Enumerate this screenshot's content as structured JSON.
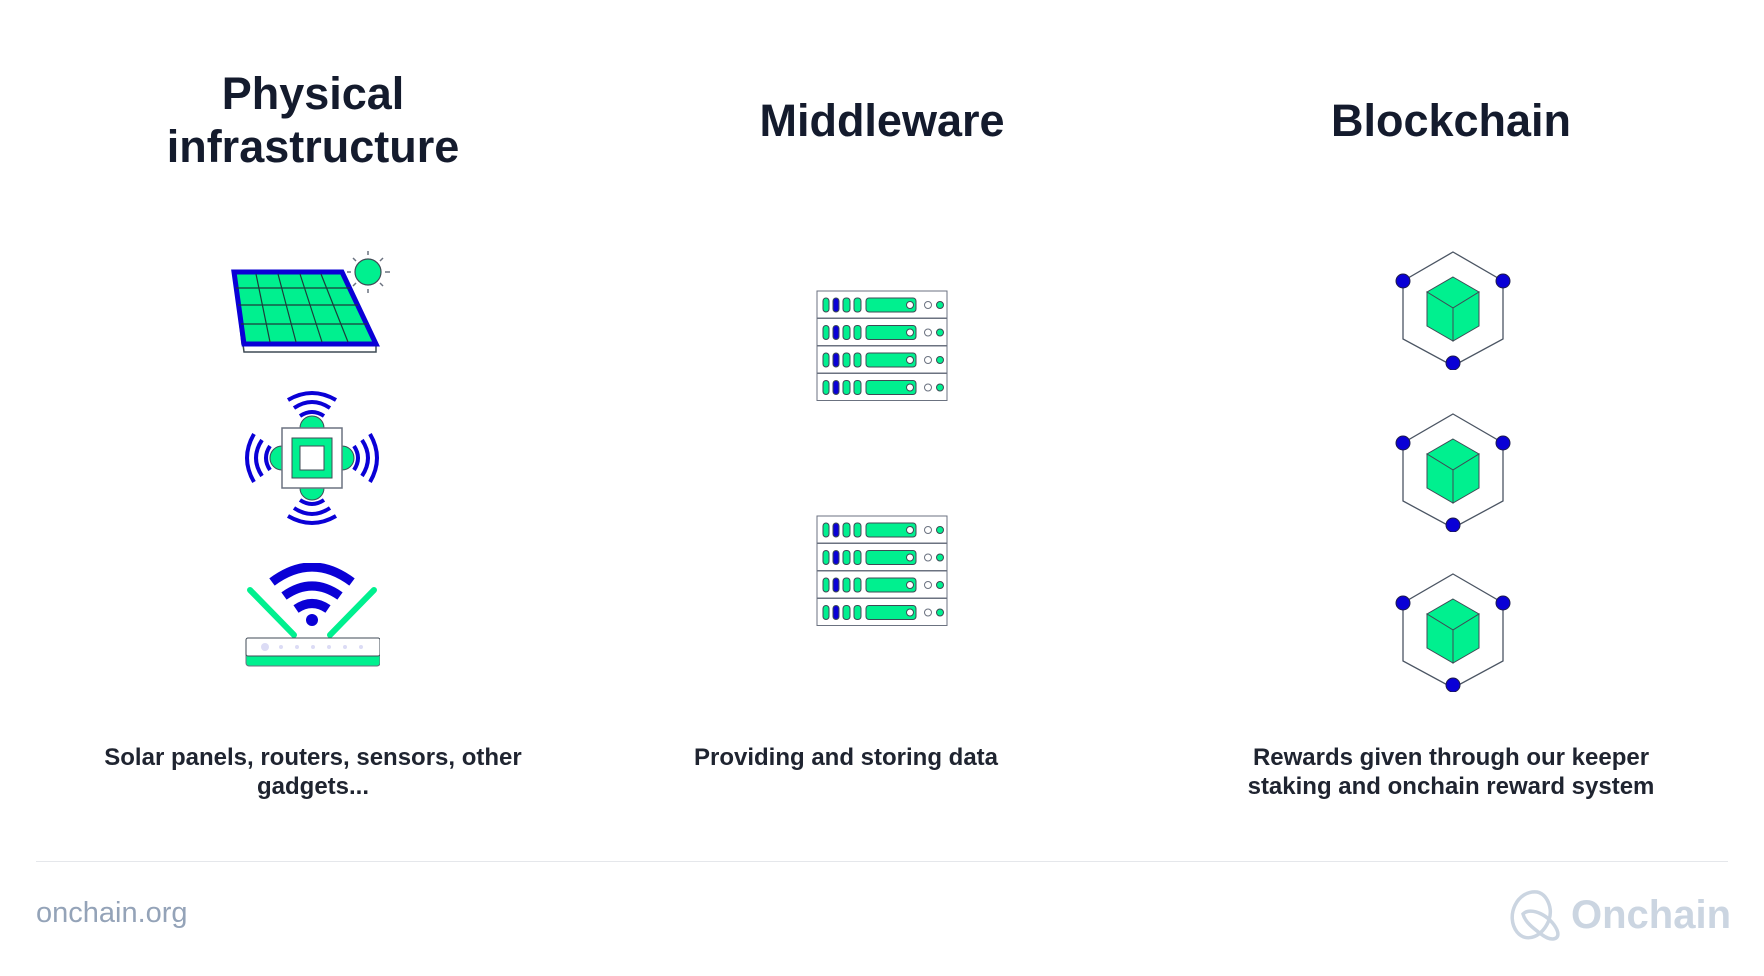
{
  "colors": {
    "green": "#00f08f",
    "blue": "#0a00d6",
    "outline": "#3f4a55",
    "muted": "#cbd5e1"
  },
  "columns": [
    {
      "title_lines": [
        "Physical",
        "infrastructure"
      ],
      "caption_lines": [
        "Solar panels, routers, sensors, other",
        "gadgets..."
      ],
      "icons": [
        "solar-panel-icon",
        "sensor-chip-icon",
        "wifi-router-icon"
      ]
    },
    {
      "title_lines": [
        "Middleware"
      ],
      "caption_lines": [
        "Providing and storing data"
      ],
      "icons": [
        "server-rack-icon",
        "server-rack-icon"
      ]
    },
    {
      "title_lines": [
        "Blockchain"
      ],
      "caption_lines": [
        "Rewards given through our keeper",
        "staking and onchain reward system"
      ],
      "icons": [
        "blockchain-node-icon",
        "blockchain-node-icon",
        "blockchain-node-icon"
      ]
    }
  ],
  "footer": {
    "url": "onchain.org",
    "logo_text": "Onchain"
  }
}
